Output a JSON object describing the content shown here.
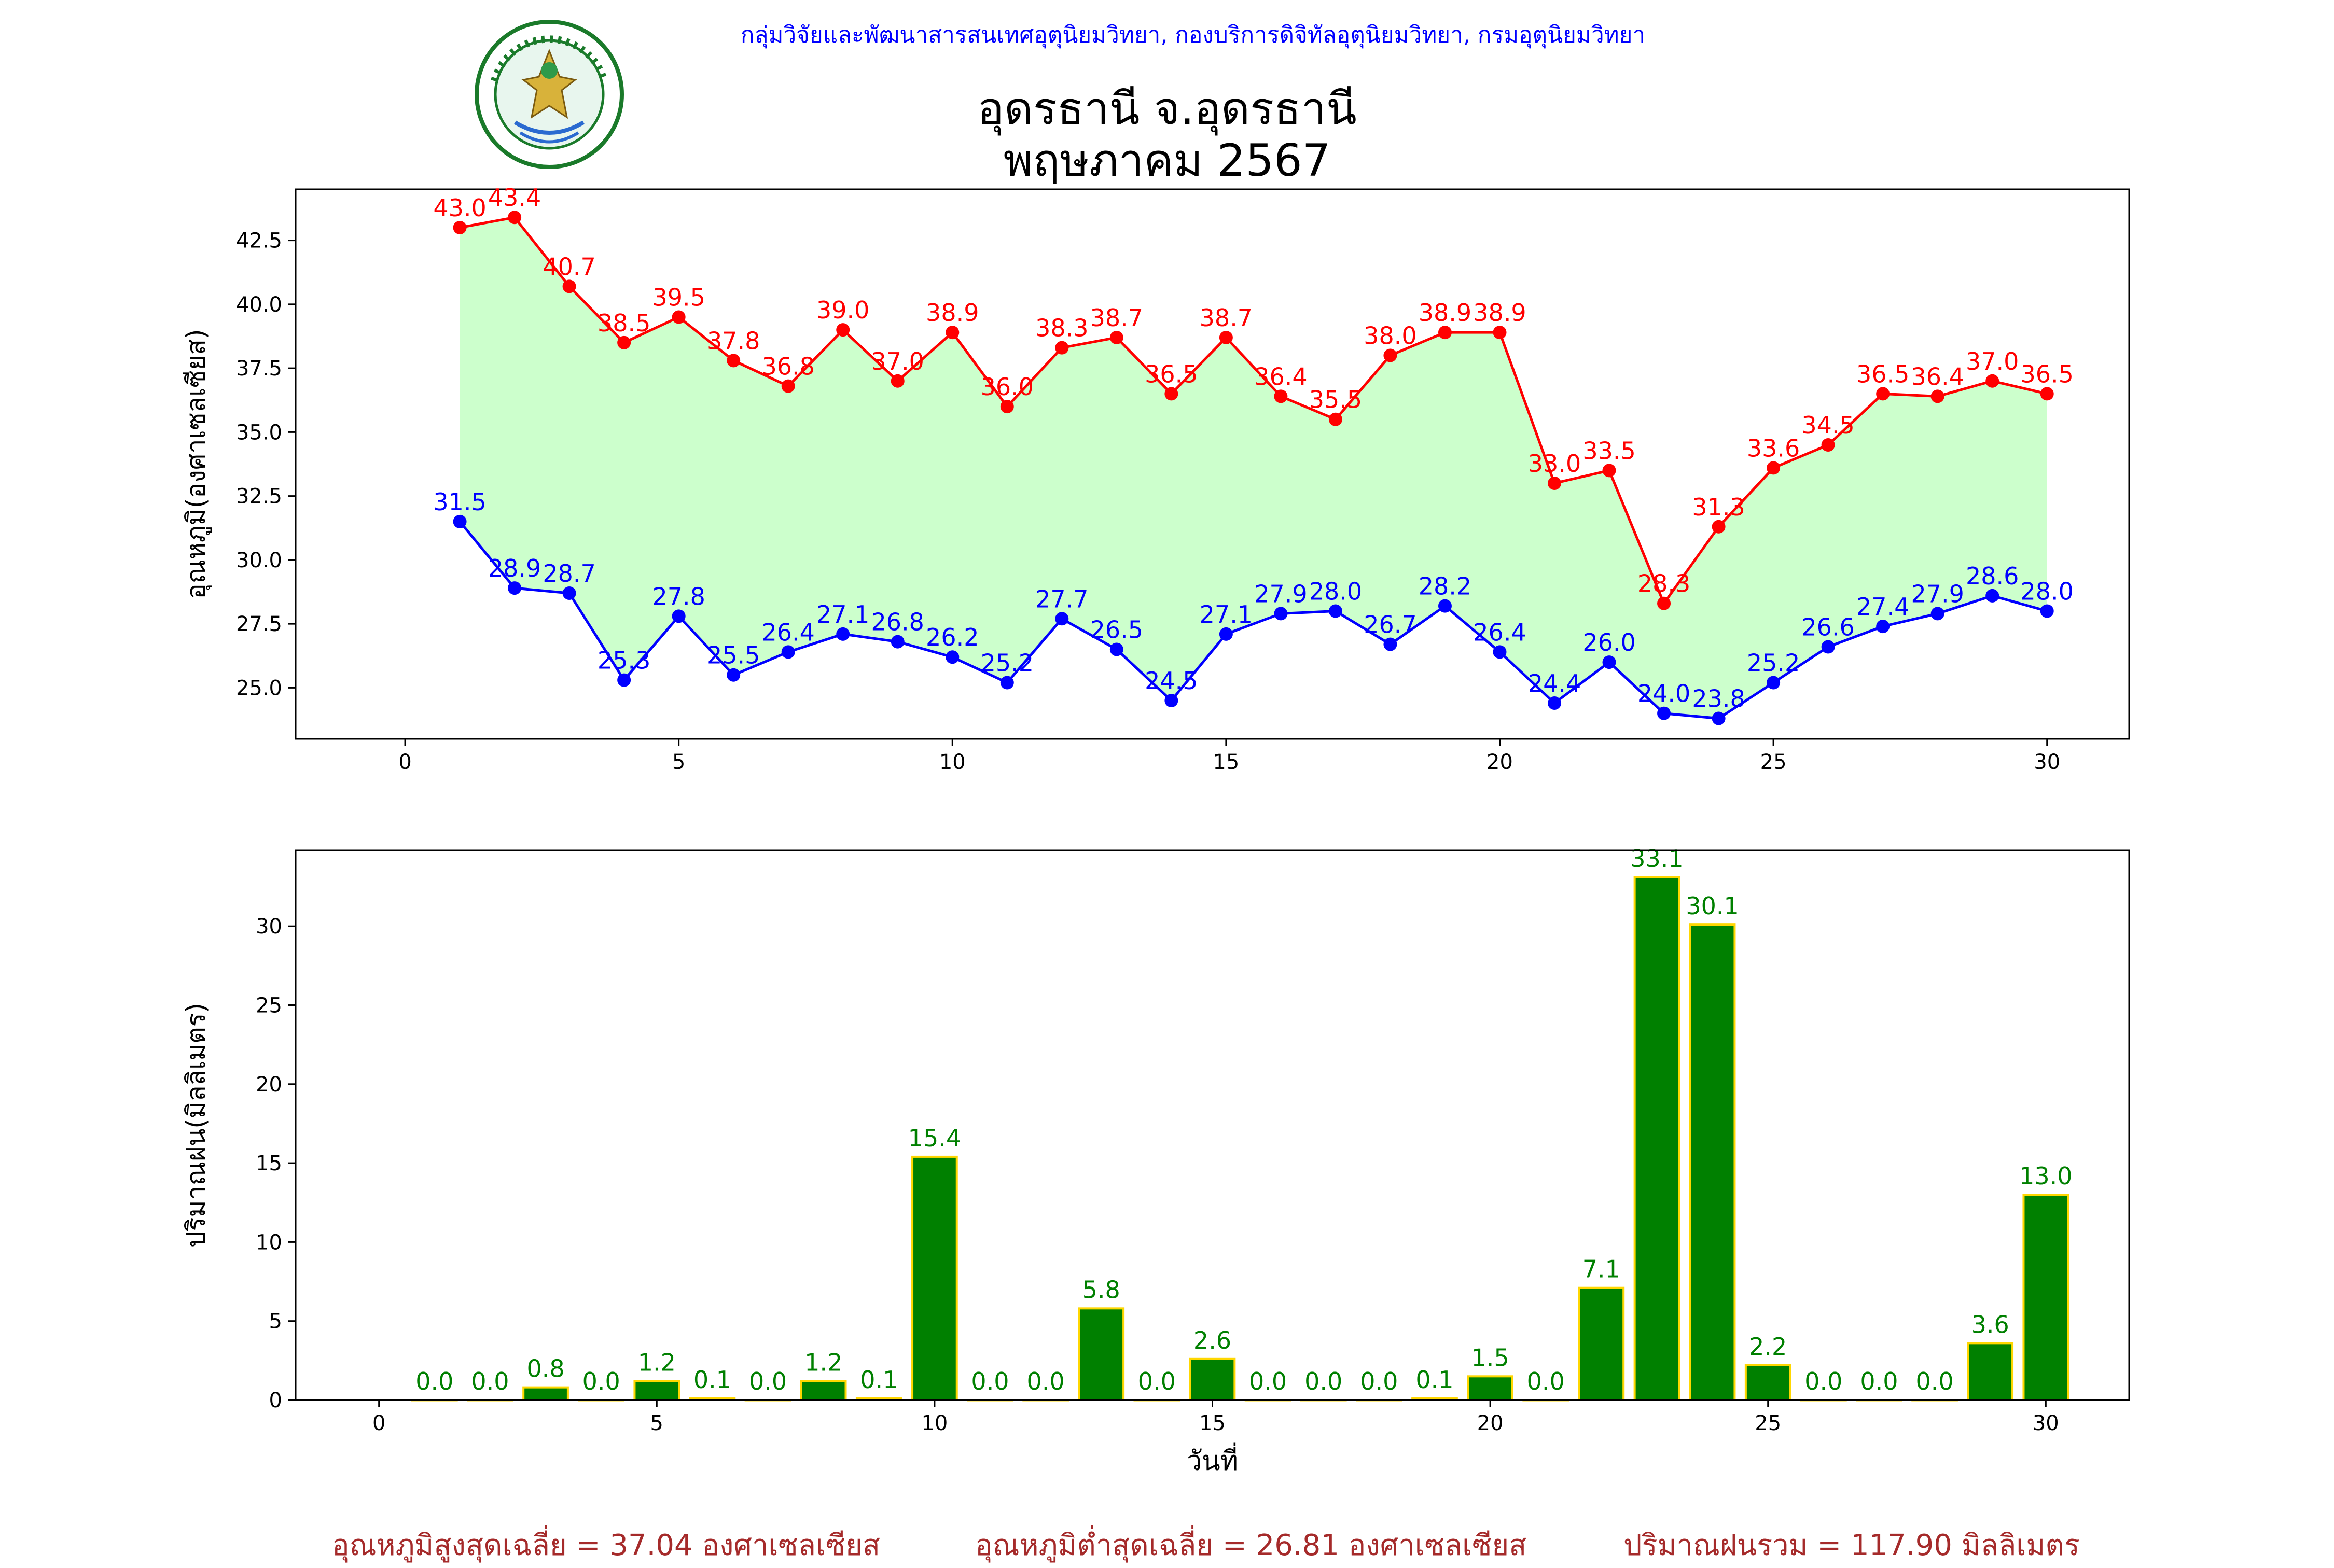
{
  "header": {
    "agency_line": "กลุ่มวิจัยและพัฒนาสารสนเทศอุตุนิยมวิทยา, กองบริการดิจิทัลอุตุนิยมวิทยา, กรมอุตุนิยมวิทยา",
    "title_line1": "อุดรธานี จ.อุดรธานี",
    "title_line2": "พฤษภาคม 2567",
    "logo_text": "กรมอุตุนิยมวิทยา METEOROLOGICAL DEPARTMENT"
  },
  "colors": {
    "max_temp": "#ff0000",
    "min_temp": "#0000ff",
    "temp_fill": "#ccffcc",
    "rain_bar": "#008000",
    "rain_edge": "#ffd700",
    "footer_text": "#a52a2a",
    "agency_text": "#0000ff"
  },
  "chart_data": [
    {
      "type": "line",
      "ylabel": "อุณหภูมิ(องศาเซลเซียส)",
      "xlim": [
        -2,
        31.5
      ],
      "ylim": [
        23.0,
        44.5
      ],
      "xticks": [
        0,
        5,
        10,
        15,
        20,
        25,
        30
      ],
      "yticks": [
        25.0,
        27.5,
        30.0,
        32.5,
        35.0,
        37.5,
        40.0,
        42.5
      ],
      "x": [
        1,
        2,
        3,
        4,
        5,
        6,
        7,
        8,
        9,
        10,
        11,
        12,
        13,
        14,
        15,
        16,
        17,
        18,
        19,
        20,
        21,
        22,
        23,
        24,
        25,
        26,
        27,
        28,
        29,
        30
      ],
      "series": [
        {
          "values": [
            43.0,
            43.4,
            40.7,
            38.5,
            39.5,
            37.8,
            36.8,
            39.0,
            37.0,
            38.9,
            36.0,
            38.3,
            38.7,
            36.5,
            38.7,
            36.4,
            35.5,
            38.0,
            38.9,
            38.9,
            33.0,
            33.5,
            28.3,
            31.3,
            33.6,
            34.5,
            36.5,
            36.4,
            37.0,
            36.5
          ]
        },
        {
          "values": [
            31.5,
            28.9,
            28.7,
            25.3,
            27.8,
            25.5,
            26.4,
            27.1,
            26.8,
            26.2,
            25.2,
            27.7,
            26.5,
            24.5,
            27.1,
            27.9,
            28.0,
            26.7,
            28.2,
            26.4,
            24.4,
            26.0,
            24.0,
            23.8,
            25.2,
            26.6,
            27.4,
            27.9,
            28.6,
            28.0
          ]
        }
      ]
    },
    {
      "type": "bar",
      "ylabel": "ปริมาณฝน(มิลลิเมตร)",
      "xlabel": "วันที่",
      "xlim": [
        -1.5,
        31.5
      ],
      "ylim": [
        0,
        34.8
      ],
      "xticks": [
        0,
        5,
        10,
        15,
        20,
        25,
        30
      ],
      "yticks": [
        0,
        5,
        10,
        15,
        20,
        25,
        30
      ],
      "x": [
        1,
        2,
        3,
        4,
        5,
        6,
        7,
        8,
        9,
        10,
        11,
        12,
        13,
        14,
        15,
        16,
        17,
        18,
        19,
        20,
        21,
        22,
        23,
        24,
        25,
        26,
        27,
        28,
        29,
        30
      ],
      "values": [
        0.0,
        0.0,
        0.8,
        0.0,
        1.2,
        0.1,
        0.0,
        1.2,
        0.1,
        15.4,
        0.0,
        0.0,
        5.8,
        0.0,
        2.6,
        0.0,
        0.0,
        0.0,
        0.1,
        1.5,
        0.0,
        7.1,
        33.1,
        30.1,
        2.2,
        0.0,
        0.0,
        0.0,
        3.6,
        13.0
      ]
    }
  ],
  "footer": {
    "avg_max": "อุณหภูมิสูงสุดเฉลี่ย = 37.04 องศาเซลเซียส",
    "avg_min": "อุณหภูมิต่ำสุดเฉลี่ย = 26.81 องศาเซลเซียส",
    "total_rain": "ปริมาณฝนรวม = 117.90 มิลลิเมตร"
  }
}
